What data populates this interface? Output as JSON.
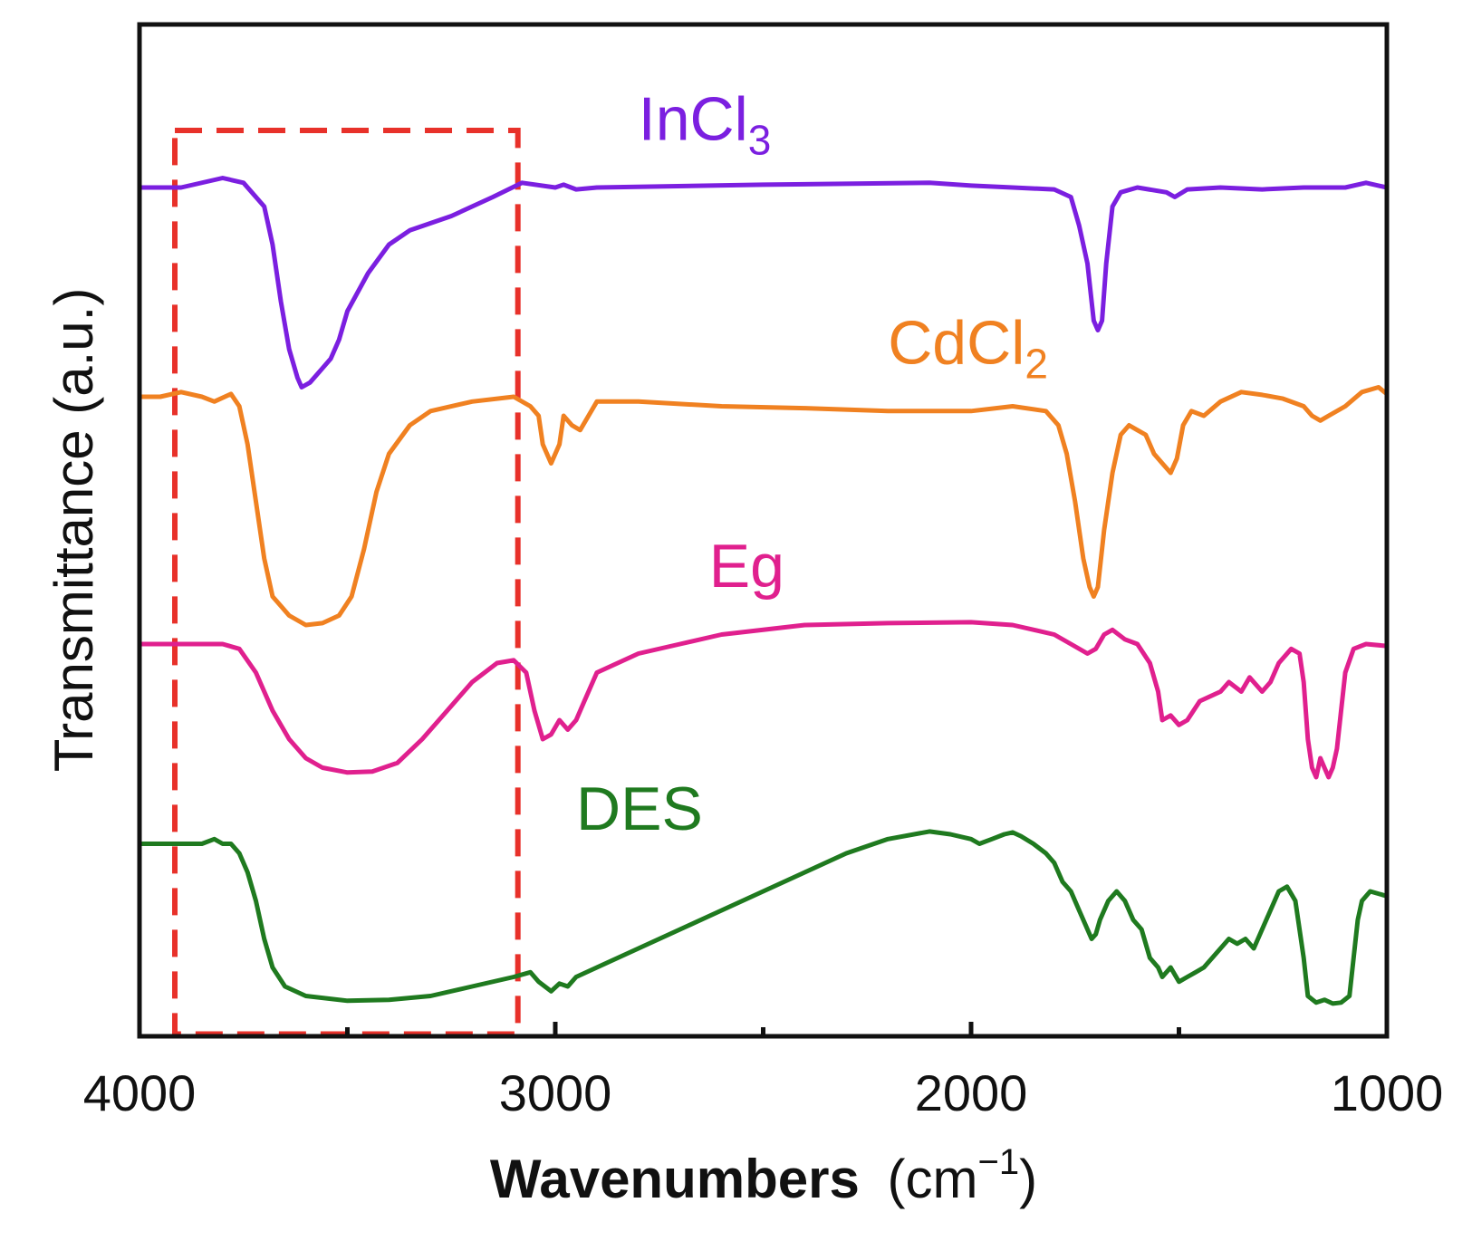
{
  "chart_data": {
    "type": "line",
    "title": "",
    "xlabel": "Wavenumbers",
    "xlabel_unit": "(cm",
    "xlabel_unit_sup": "−1",
    "xlabel_unit_close": ")",
    "ylabel": "Transmittance (a.u.)",
    "xlim": [
      4000,
      1000
    ],
    "x_reversed": true,
    "x_ticks": [
      4000,
      3000,
      2000,
      1000
    ],
    "x_ticks_labels": [
      "4000",
      "3000",
      "2000",
      "1000"
    ],
    "x_minor_ticks": [
      3500,
      2500,
      1500
    ],
    "ylim": [
      0,
      100
    ],
    "grid": false,
    "legend": "none",
    "series": [
      {
        "name": "InCl",
        "subscript": "3",
        "color": "#7b1fe0",
        "label_at": [
          2800,
          91
        ],
        "points": [
          [
            4000,
            86
          ],
          [
            3900,
            86
          ],
          [
            3800,
            87
          ],
          [
            3750,
            86.5
          ],
          [
            3700,
            84
          ],
          [
            3680,
            80
          ],
          [
            3660,
            74
          ],
          [
            3640,
            69
          ],
          [
            3620,
            66
          ],
          [
            3610,
            65
          ],
          [
            3590,
            65.5
          ],
          [
            3560,
            67
          ],
          [
            3540,
            68
          ],
          [
            3520,
            70
          ],
          [
            3500,
            73
          ],
          [
            3450,
            77
          ],
          [
            3400,
            80
          ],
          [
            3350,
            81.5
          ],
          [
            3250,
            83
          ],
          [
            3150,
            85
          ],
          [
            3080,
            86.5
          ],
          [
            3000,
            86
          ],
          [
            2980,
            86.3
          ],
          [
            2950,
            85.8
          ],
          [
            2900,
            86
          ],
          [
            2500,
            86.3
          ],
          [
            2100,
            86.5
          ],
          [
            2000,
            86.2
          ],
          [
            1900,
            86
          ],
          [
            1800,
            85.8
          ],
          [
            1760,
            85
          ],
          [
            1740,
            82
          ],
          [
            1720,
            78
          ],
          [
            1705,
            72
          ],
          [
            1695,
            71
          ],
          [
            1685,
            72
          ],
          [
            1675,
            78
          ],
          [
            1660,
            84
          ],
          [
            1640,
            85.5
          ],
          [
            1600,
            86
          ],
          [
            1530,
            85.5
          ],
          [
            1510,
            85
          ],
          [
            1480,
            85.8
          ],
          [
            1400,
            86
          ],
          [
            1300,
            85.8
          ],
          [
            1200,
            86
          ],
          [
            1100,
            86
          ],
          [
            1050,
            86.5
          ],
          [
            1000,
            86
          ]
        ]
      },
      {
        "name": "CdCl",
        "subscript": "2",
        "color": "#f08121",
        "label_at": [
          2200,
          67.5
        ],
        "points": [
          [
            4000,
            64
          ],
          [
            3950,
            64
          ],
          [
            3900,
            64.5
          ],
          [
            3850,
            64
          ],
          [
            3820,
            63.5
          ],
          [
            3780,
            64.3
          ],
          [
            3760,
            63
          ],
          [
            3740,
            59
          ],
          [
            3720,
            53
          ],
          [
            3700,
            47
          ],
          [
            3680,
            43
          ],
          [
            3660,
            42
          ],
          [
            3640,
            41
          ],
          [
            3600,
            40
          ],
          [
            3560,
            40.2
          ],
          [
            3520,
            41
          ],
          [
            3490,
            43
          ],
          [
            3460,
            48
          ],
          [
            3430,
            54
          ],
          [
            3400,
            58
          ],
          [
            3350,
            61
          ],
          [
            3300,
            62.5
          ],
          [
            3200,
            63.5
          ],
          [
            3100,
            64
          ],
          [
            3060,
            63
          ],
          [
            3040,
            62
          ],
          [
            3030,
            59
          ],
          [
            3010,
            57
          ],
          [
            2990,
            59
          ],
          [
            2980,
            62
          ],
          [
            2960,
            61
          ],
          [
            2940,
            60.5
          ],
          [
            2920,
            62
          ],
          [
            2900,
            63.5
          ],
          [
            2800,
            63.5
          ],
          [
            2600,
            63
          ],
          [
            2400,
            62.8
          ],
          [
            2200,
            62.5
          ],
          [
            2000,
            62.5
          ],
          [
            1900,
            63
          ],
          [
            1820,
            62.5
          ],
          [
            1790,
            61
          ],
          [
            1770,
            58
          ],
          [
            1750,
            53
          ],
          [
            1730,
            47
          ],
          [
            1715,
            44
          ],
          [
            1705,
            43
          ],
          [
            1695,
            44
          ],
          [
            1680,
            50
          ],
          [
            1660,
            56
          ],
          [
            1640,
            60
          ],
          [
            1620,
            61
          ],
          [
            1600,
            60.5
          ],
          [
            1580,
            60
          ],
          [
            1560,
            58
          ],
          [
            1540,
            57
          ],
          [
            1520,
            56
          ],
          [
            1505,
            57.5
          ],
          [
            1490,
            61
          ],
          [
            1470,
            62.5
          ],
          [
            1440,
            62
          ],
          [
            1400,
            63.5
          ],
          [
            1350,
            64.5
          ],
          [
            1300,
            64.2
          ],
          [
            1250,
            63.8
          ],
          [
            1200,
            63
          ],
          [
            1180,
            62
          ],
          [
            1160,
            61.5
          ],
          [
            1140,
            62
          ],
          [
            1100,
            63
          ],
          [
            1060,
            64.5
          ],
          [
            1020,
            65
          ],
          [
            1000,
            64.3
          ]
        ]
      },
      {
        "name": "Eg",
        "subscript": "",
        "color": "#e0208e",
        "label_at": [
          2630,
          44
        ],
        "points": [
          [
            4000,
            38
          ],
          [
            3900,
            38
          ],
          [
            3800,
            38
          ],
          [
            3760,
            37.5
          ],
          [
            3720,
            35
          ],
          [
            3680,
            31
          ],
          [
            3640,
            28
          ],
          [
            3600,
            26
          ],
          [
            3560,
            25
          ],
          [
            3500,
            24.5
          ],
          [
            3440,
            24.6
          ],
          [
            3380,
            25.5
          ],
          [
            3320,
            28
          ],
          [
            3260,
            31
          ],
          [
            3200,
            34
          ],
          [
            3140,
            36
          ],
          [
            3100,
            36.3
          ],
          [
            3070,
            35
          ],
          [
            3050,
            31
          ],
          [
            3030,
            28
          ],
          [
            3010,
            28.5
          ],
          [
            2990,
            30
          ],
          [
            2970,
            29
          ],
          [
            2950,
            30
          ],
          [
            2930,
            32
          ],
          [
            2900,
            35
          ],
          [
            2800,
            37
          ],
          [
            2700,
            38
          ],
          [
            2600,
            39
          ],
          [
            2400,
            40
          ],
          [
            2200,
            40.2
          ],
          [
            2000,
            40.3
          ],
          [
            1900,
            40
          ],
          [
            1800,
            39
          ],
          [
            1760,
            38
          ],
          [
            1720,
            37
          ],
          [
            1700,
            37.5
          ],
          [
            1680,
            39
          ],
          [
            1660,
            39.5
          ],
          [
            1630,
            38.5
          ],
          [
            1600,
            38
          ],
          [
            1570,
            36
          ],
          [
            1550,
            33
          ],
          [
            1540,
            30
          ],
          [
            1520,
            30.5
          ],
          [
            1500,
            29.5
          ],
          [
            1480,
            30
          ],
          [
            1450,
            32
          ],
          [
            1400,
            33
          ],
          [
            1380,
            34
          ],
          [
            1350,
            33
          ],
          [
            1330,
            34.5
          ],
          [
            1300,
            33
          ],
          [
            1280,
            34
          ],
          [
            1260,
            36
          ],
          [
            1230,
            37.5
          ],
          [
            1210,
            37
          ],
          [
            1200,
            34
          ],
          [
            1190,
            28
          ],
          [
            1180,
            25
          ],
          [
            1170,
            24
          ],
          [
            1160,
            26
          ],
          [
            1150,
            25
          ],
          [
            1140,
            24
          ],
          [
            1130,
            25
          ],
          [
            1120,
            27
          ],
          [
            1110,
            31
          ],
          [
            1100,
            35
          ],
          [
            1080,
            37.5
          ],
          [
            1050,
            38
          ],
          [
            1000,
            37.8
          ]
        ]
      },
      {
        "name": "DES",
        "subscript": "",
        "color": "#1f7a1f",
        "label_at": [
          2950,
          18.5
        ],
        "points": [
          [
            4000,
            17
          ],
          [
            3900,
            17
          ],
          [
            3850,
            17
          ],
          [
            3820,
            17.5
          ],
          [
            3800,
            17
          ],
          [
            3780,
            17
          ],
          [
            3760,
            16
          ],
          [
            3740,
            14
          ],
          [
            3720,
            11
          ],
          [
            3700,
            7
          ],
          [
            3680,
            4
          ],
          [
            3650,
            2
          ],
          [
            3600,
            1
          ],
          [
            3500,
            0.5
          ],
          [
            3400,
            0.6
          ],
          [
            3300,
            1
          ],
          [
            3200,
            2
          ],
          [
            3100,
            3
          ],
          [
            3060,
            3.5
          ],
          [
            3040,
            2.5
          ],
          [
            3010,
            1.5
          ],
          [
            2990,
            2.3
          ],
          [
            2970,
            2
          ],
          [
            2950,
            3
          ],
          [
            2900,
            4
          ],
          [
            2800,
            6
          ],
          [
            2700,
            8
          ],
          [
            2600,
            10
          ],
          [
            2500,
            12
          ],
          [
            2400,
            14
          ],
          [
            2300,
            16
          ],
          [
            2200,
            17.5
          ],
          [
            2100,
            18.3
          ],
          [
            2050,
            18
          ],
          [
            2000,
            17.5
          ],
          [
            1980,
            17
          ],
          [
            1950,
            17.5
          ],
          [
            1920,
            18
          ],
          [
            1900,
            18.2
          ],
          [
            1880,
            17.8
          ],
          [
            1850,
            17
          ],
          [
            1820,
            16
          ],
          [
            1800,
            15
          ],
          [
            1780,
            13
          ],
          [
            1760,
            12
          ],
          [
            1740,
            10
          ],
          [
            1720,
            8
          ],
          [
            1710,
            7
          ],
          [
            1700,
            7.5
          ],
          [
            1690,
            9
          ],
          [
            1670,
            11
          ],
          [
            1650,
            12
          ],
          [
            1630,
            11
          ],
          [
            1610,
            9
          ],
          [
            1590,
            8
          ],
          [
            1570,
            5
          ],
          [
            1550,
            4
          ],
          [
            1540,
            3
          ],
          [
            1520,
            4
          ],
          [
            1500,
            2.5
          ],
          [
            1480,
            3
          ],
          [
            1460,
            3.5
          ],
          [
            1440,
            4
          ],
          [
            1420,
            5
          ],
          [
            1380,
            7
          ],
          [
            1360,
            6.5
          ],
          [
            1340,
            7
          ],
          [
            1320,
            6
          ],
          [
            1300,
            8
          ],
          [
            1280,
            10
          ],
          [
            1260,
            12
          ],
          [
            1240,
            12.5
          ],
          [
            1220,
            11
          ],
          [
            1200,
            5
          ],
          [
            1190,
            1
          ],
          [
            1170,
            0.3
          ],
          [
            1150,
            0.6
          ],
          [
            1130,
            0.2
          ],
          [
            1110,
            0.3
          ],
          [
            1090,
            1
          ],
          [
            1080,
            5
          ],
          [
            1070,
            9
          ],
          [
            1060,
            11
          ],
          [
            1040,
            12
          ],
          [
            1000,
            11.5
          ]
        ]
      }
    ],
    "annotations": [
      {
        "type": "dashed-rect",
        "color": "#e8312a",
        "x_range": [
          3915,
          3090
        ],
        "y_range": [
          -3,
          92
        ]
      }
    ]
  }
}
